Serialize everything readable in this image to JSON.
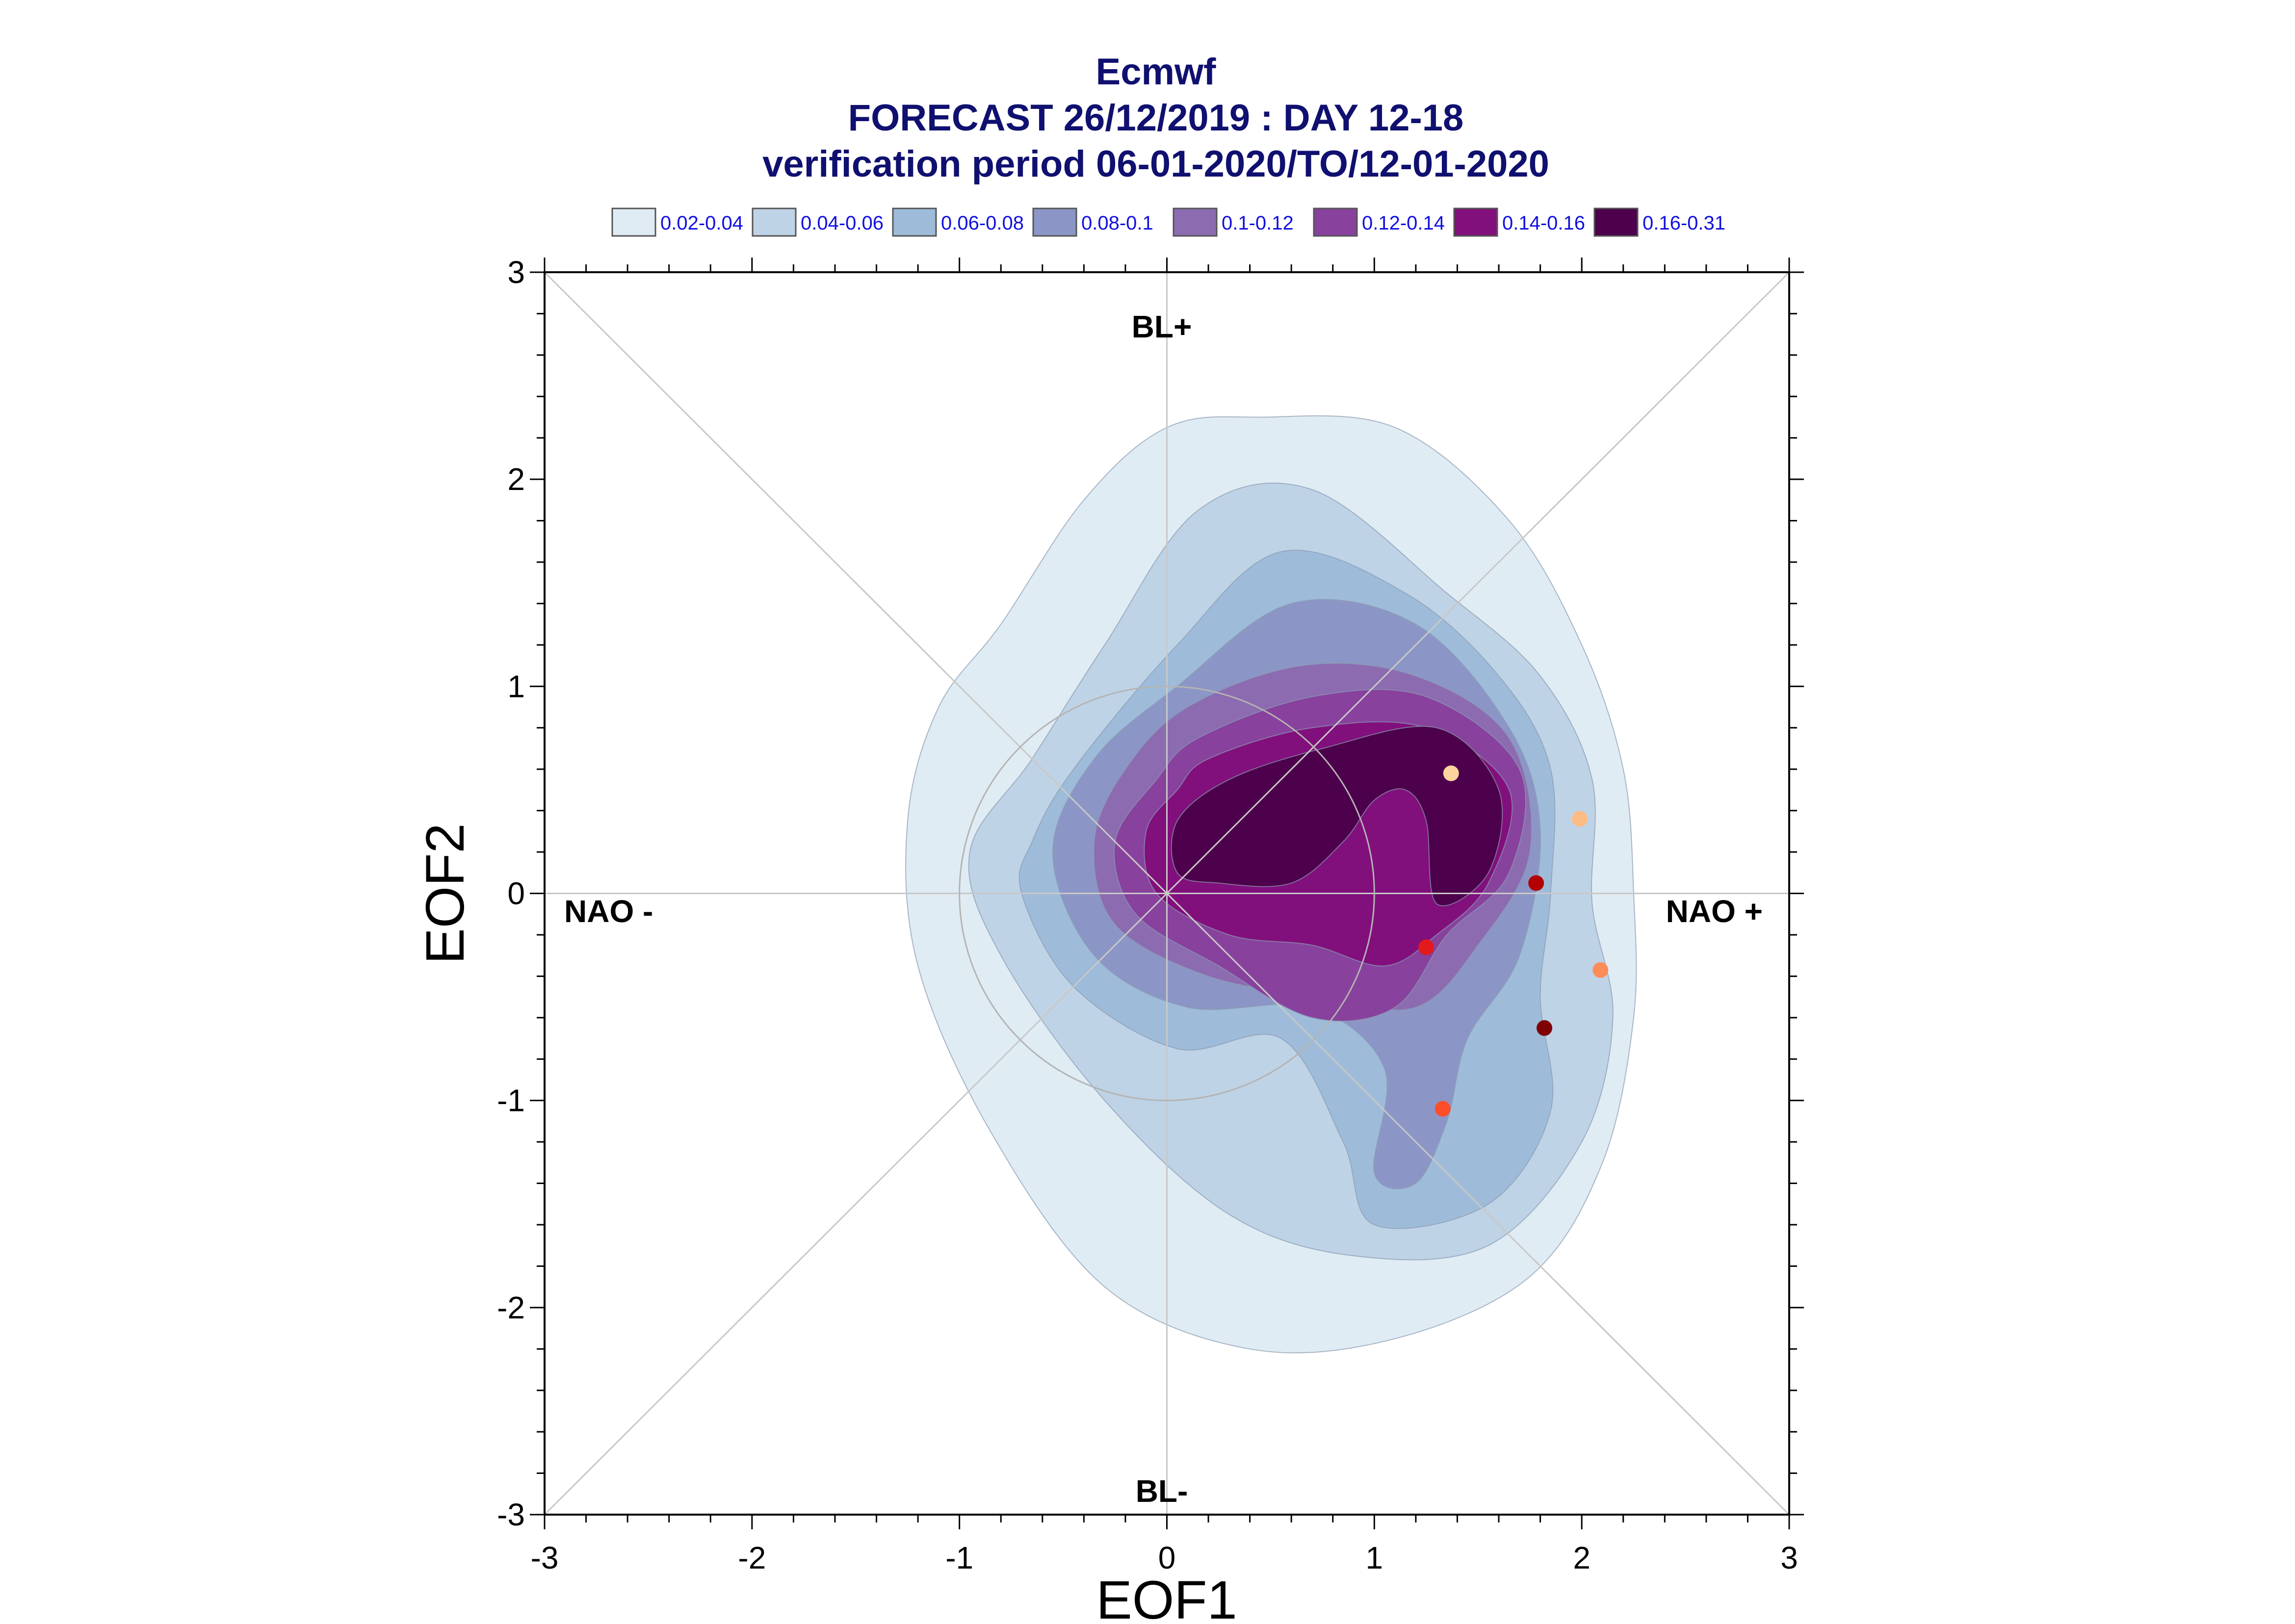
{
  "title": {
    "line1": "Ecmwf",
    "line2": "FORECAST 26/12/2019 : DAY 12-18",
    "line3": "verification period 06-01-2020/TO/12-01-2020"
  },
  "legend": [
    {
      "label": "0.02-0.04",
      "color": "#e0ecf4"
    },
    {
      "label": "0.04-0.06",
      "color": "#bfd3e6"
    },
    {
      "label": "0.06-0.08",
      "color": "#9ebcda"
    },
    {
      "label": "0.08-0.1",
      "color": "#8c96c6"
    },
    {
      "label": "0.1-0.12",
      "color": "#8c6bb1"
    },
    {
      "label": "0.12-0.14",
      "color": "#88419d"
    },
    {
      "label": "0.14-0.16",
      "color": "#810f7c"
    },
    {
      "label": "0.16-0.31",
      "color": "#4d004b"
    }
  ],
  "regimes": {
    "top": "BL+",
    "bottom": "BL-",
    "left": "NAO -",
    "right": "NAO +"
  },
  "chart_data": {
    "type": "scatter",
    "xlabel": "EOF1",
    "ylabel": "EOF2",
    "xlim": [
      -3,
      3
    ],
    "ylim": [
      -3,
      3
    ],
    "xticks": [
      -3,
      -2,
      -1,
      0,
      1,
      2,
      3
    ],
    "yticks": [
      -3,
      -2,
      -1,
      0,
      1,
      2,
      3
    ],
    "reference_circle_radius": 1,
    "diagonals": true,
    "density_contours": [
      {
        "level": "0.02-0.04",
        "color": "#e0ecf4",
        "points": [
          [
            -0.8,
            1.3
          ],
          [
            -0.4,
            1.9
          ],
          [
            0,
            2.25
          ],
          [
            0.45,
            2.3
          ],
          [
            1.1,
            2.25
          ],
          [
            1.65,
            1.8
          ],
          [
            2.0,
            1.2
          ],
          [
            2.2,
            0.6
          ],
          [
            2.25,
            0.0
          ],
          [
            2.25,
            -0.6
          ],
          [
            2.1,
            -1.3
          ],
          [
            1.75,
            -1.85
          ],
          [
            1.1,
            -2.15
          ],
          [
            0.4,
            -2.2
          ],
          [
            -0.3,
            -1.9
          ],
          [
            -0.85,
            -1.15
          ],
          [
            -1.2,
            -0.35
          ],
          [
            -1.25,
            0.35
          ],
          [
            -1.1,
            0.9
          ]
        ]
      },
      {
        "level": "0.04-0.06",
        "color": "#bfd3e6",
        "points": [
          [
            -0.65,
            0.65
          ],
          [
            -0.3,
            1.2
          ],
          [
            0.15,
            1.85
          ],
          [
            0.7,
            1.95
          ],
          [
            1.35,
            1.45
          ],
          [
            1.8,
            1.05
          ],
          [
            2.05,
            0.55
          ],
          [
            2.05,
            -0.05
          ],
          [
            2.15,
            -0.6
          ],
          [
            2.0,
            -1.2
          ],
          [
            1.55,
            -1.7
          ],
          [
            0.9,
            -1.75
          ],
          [
            0.3,
            -1.55
          ],
          [
            -0.3,
            -1.0
          ],
          [
            -0.8,
            -0.3
          ],
          [
            -0.95,
            0.2
          ]
        ]
      },
      {
        "level": "0.06-0.08",
        "color": "#9ebcda",
        "points": [
          [
            -0.65,
            0.25
          ],
          [
            -0.45,
            0.6
          ],
          [
            0.05,
            1.2
          ],
          [
            0.55,
            1.65
          ],
          [
            1.15,
            1.45
          ],
          [
            1.6,
            1.05
          ],
          [
            1.85,
            0.6
          ],
          [
            1.85,
            0.0
          ],
          [
            1.8,
            -0.5
          ],
          [
            1.85,
            -1.05
          ],
          [
            1.55,
            -1.5
          ],
          [
            1.0,
            -1.6
          ],
          [
            0.85,
            -1.2
          ],
          [
            0.55,
            -0.7
          ],
          [
            0.05,
            -0.75
          ],
          [
            -0.45,
            -0.45
          ],
          [
            -0.7,
            0.0
          ]
        ]
      },
      {
        "level": "0.08-0.1",
        "color": "#8c96c6",
        "points": [
          [
            0.05,
            1.0
          ],
          [
            0.6,
            1.4
          ],
          [
            1.2,
            1.3
          ],
          [
            1.65,
            0.8
          ],
          [
            1.8,
            0.3
          ],
          [
            1.7,
            -0.3
          ],
          [
            1.45,
            -0.7
          ],
          [
            1.35,
            -1.1
          ],
          [
            1.2,
            -1.4
          ],
          [
            1.0,
            -1.35
          ],
          [
            1.05,
            -0.85
          ],
          [
            0.7,
            -0.55
          ],
          [
            0.1,
            -0.55
          ],
          [
            -0.35,
            -0.3
          ],
          [
            -0.55,
            0.2
          ],
          [
            -0.35,
            0.65
          ]
        ]
      },
      {
        "level": "0.1-0.12",
        "color": "#8c6bb1",
        "points": [
          [
            0.1,
            0.9
          ],
          [
            0.65,
            1.1
          ],
          [
            1.2,
            1.05
          ],
          [
            1.65,
            0.75
          ],
          [
            1.75,
            0.2
          ],
          [
            1.5,
            -0.25
          ],
          [
            1.2,
            -0.55
          ],
          [
            0.75,
            -0.5
          ],
          [
            0.2,
            -0.4
          ],
          [
            -0.25,
            -0.15
          ],
          [
            -0.35,
            0.25
          ],
          [
            -0.2,
            0.6
          ]
        ]
      },
      {
        "level": "0.12-0.14",
        "color": "#88419d",
        "points": [
          [
            0.15,
            0.75
          ],
          [
            0.7,
            0.95
          ],
          [
            1.25,
            0.95
          ],
          [
            1.7,
            0.6
          ],
          [
            1.65,
            0.1
          ],
          [
            1.35,
            -0.2
          ],
          [
            1.1,
            -0.55
          ],
          [
            0.7,
            -0.6
          ],
          [
            0.25,
            -0.35
          ],
          [
            -0.15,
            -0.1
          ],
          [
            -0.25,
            0.25
          ],
          [
            -0.05,
            0.55
          ]
        ]
      },
      {
        "level": "0.14-0.16",
        "color": "#810f7c",
        "points": [
          [
            0.2,
            0.65
          ],
          [
            0.7,
            0.8
          ],
          [
            1.25,
            0.8
          ],
          [
            1.65,
            0.5
          ],
          [
            1.55,
            0.05
          ],
          [
            1.3,
            -0.2
          ],
          [
            1.05,
            -0.35
          ],
          [
            0.7,
            -0.25
          ],
          [
            0.3,
            -0.2
          ],
          [
            -0.05,
            0.0
          ],
          [
            -0.1,
            0.3
          ],
          [
            0.05,
            0.5
          ]
        ]
      },
      {
        "level": "0.16-0.31",
        "color": "#4d004b",
        "points": [
          [
            0.3,
            0.55
          ],
          [
            0.75,
            0.7
          ],
          [
            1.3,
            0.8
          ],
          [
            1.6,
            0.5
          ],
          [
            1.55,
            0.1
          ],
          [
            1.3,
            -0.05
          ],
          [
            1.25,
            0.35
          ],
          [
            1.15,
            0.5
          ],
          [
            1.0,
            0.45
          ],
          [
            0.85,
            0.25
          ],
          [
            0.6,
            0.05
          ],
          [
            0.25,
            0.05
          ],
          [
            0.05,
            0.1
          ],
          [
            0.05,
            0.35
          ]
        ]
      }
    ],
    "points": [
      {
        "x": 1.37,
        "y": 0.58,
        "color": "#fdd49e"
      },
      {
        "x": 1.99,
        "y": 0.36,
        "color": "#fdbb84"
      },
      {
        "x": 1.78,
        "y": 0.05,
        "color": "#b30000"
      },
      {
        "x": 1.25,
        "y": -0.26,
        "color": "#e31a1c"
      },
      {
        "x": 2.09,
        "y": -0.37,
        "color": "#fc8d59"
      },
      {
        "x": 1.82,
        "y": -0.65,
        "color": "#7f0000"
      },
      {
        "x": 1.33,
        "y": -1.04,
        "color": "#fc4e2a"
      }
    ]
  }
}
